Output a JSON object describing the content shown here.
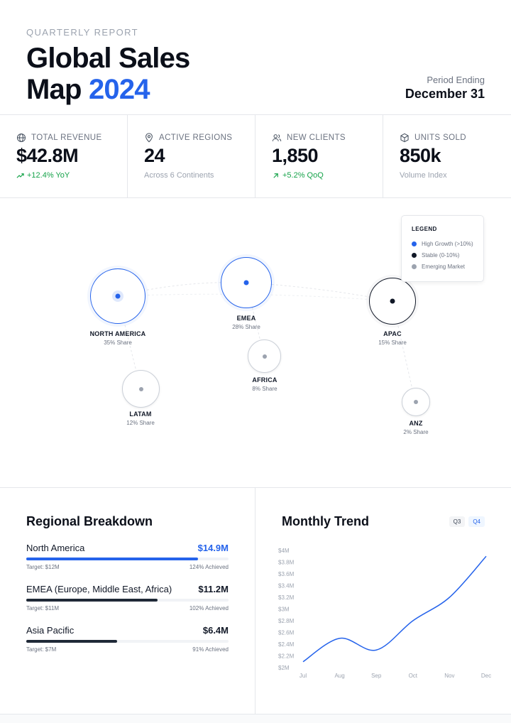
{
  "header": {
    "eyebrow": "QUARTERLY REPORT",
    "title_line1": "Global Sales",
    "title_line2_prefix": "Map",
    "title_year": "2024",
    "period_label": "Period Ending",
    "period_value": "December 31"
  },
  "kpis": [
    {
      "icon": "globe-icon",
      "label": "TOTAL REVENUE",
      "value": "$42.8M",
      "sub": "+12.4% YoY",
      "sub_icon": "trending-up-icon",
      "positive": true
    },
    {
      "icon": "map-pin-icon",
      "label": "ACTIVE REGIONS",
      "value": "24",
      "sub": "Across 6 Continents",
      "positive": false
    },
    {
      "icon": "users-icon",
      "label": "NEW CLIENTS",
      "value": "1,850",
      "sub": "+5.2% QoQ",
      "sub_icon": "arrow-up-right-icon",
      "positive": true
    },
    {
      "icon": "box-icon",
      "label": "UNITS SOLD",
      "value": "850k",
      "sub": "Volume Index",
      "positive": false
    }
  ],
  "map": {
    "nodes": [
      {
        "name": "NORTH AMERICA",
        "share": "35% Share",
        "status": "high"
      },
      {
        "name": "EMEA",
        "share": "28% Share",
        "status": "high"
      },
      {
        "name": "APAC",
        "share": "15% Share",
        "status": "stable"
      },
      {
        "name": "AFRICA",
        "share": "8% Share",
        "status": "emerging"
      },
      {
        "name": "LATAM",
        "share": "12% Share",
        "status": "emerging"
      },
      {
        "name": "ANZ",
        "share": "2% Share",
        "status": "emerging"
      }
    ],
    "legend": {
      "title": "LEGEND",
      "items": [
        {
          "label": "High Growth (>10%)",
          "color": "#2563eb"
        },
        {
          "label": "Stable (0-10%)",
          "color": "#111827"
        },
        {
          "label": "Emerging Market",
          "color": "#9ca3af"
        }
      ]
    }
  },
  "breakdown": {
    "title": "Regional Breakdown",
    "regions": [
      {
        "name": "North America",
        "amount": "$14.9M",
        "target": "Target: $12M",
        "achieved": "124% Achieved",
        "progress": 0.85,
        "color": "#2563eb"
      },
      {
        "name": "EMEA (Europe, Middle East, Africa)",
        "amount": "$11.2M",
        "target": "Target: $11M",
        "achieved": "102% Achieved",
        "progress": 0.65,
        "color": "#1f2937"
      },
      {
        "name": "Asia Pacific",
        "amount": "$6.4M",
        "target": "Target: $7M",
        "achieved": "91% Achieved",
        "progress": 0.45,
        "color": "#1f2937"
      }
    ]
  },
  "trend": {
    "title": "Monthly Trend",
    "toggles": [
      {
        "label": "Q3",
        "active": false
      },
      {
        "label": "Q4",
        "active": true
      }
    ]
  },
  "chart_data": {
    "type": "line",
    "title": "Monthly Trend",
    "xlabel": "",
    "ylabel": "",
    "categories": [
      "Jul",
      "Aug",
      "Sep",
      "Oct",
      "Nov",
      "Dec"
    ],
    "y_ticks": [
      "$2M",
      "$2.2M",
      "$2.4M",
      "$2.6M",
      "$2.8M",
      "$3M",
      "$3.2M",
      "$3.4M",
      "$3.6M",
      "$3.8M",
      "$4M"
    ],
    "ylim": [
      2.0,
      4.0
    ],
    "series": [
      {
        "values": [
          2.1,
          2.5,
          2.3,
          2.8,
          3.2,
          3.9
        ],
        "color": "#2563eb"
      }
    ],
    "grid": false
  }
}
